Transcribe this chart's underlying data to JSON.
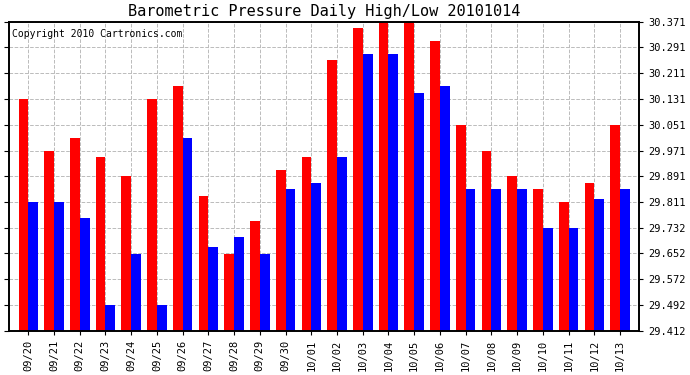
{
  "title": "Barometric Pressure Daily High/Low 20101014",
  "copyright": "Copyright 2010 Cartronics.com",
  "categories": [
    "09/20",
    "09/21",
    "09/22",
    "09/23",
    "09/24",
    "09/25",
    "09/26",
    "09/27",
    "09/28",
    "09/29",
    "09/30",
    "10/01",
    "10/02",
    "10/03",
    "10/04",
    "10/05",
    "10/06",
    "10/07",
    "10/08",
    "10/09",
    "10/10",
    "10/11",
    "10/12",
    "10/13"
  ],
  "highs": [
    30.131,
    29.971,
    30.011,
    29.951,
    29.891,
    30.131,
    30.171,
    29.831,
    29.651,
    29.751,
    29.911,
    29.951,
    30.251,
    30.351,
    30.371,
    30.371,
    30.311,
    30.051,
    29.971,
    29.891,
    29.851,
    29.811,
    29.871,
    30.051
  ],
  "lows": [
    29.811,
    29.811,
    29.761,
    29.491,
    29.651,
    29.491,
    30.011,
    29.671,
    29.701,
    29.651,
    29.851,
    29.871,
    29.951,
    30.271,
    30.271,
    30.151,
    30.171,
    29.851,
    29.851,
    29.851,
    29.731,
    29.731,
    29.821,
    29.851
  ],
  "ymin": 29.412,
  "ymax": 30.371,
  "yticks": [
    29.412,
    29.492,
    29.572,
    29.652,
    29.732,
    29.811,
    29.891,
    29.971,
    30.051,
    30.131,
    30.211,
    30.291,
    30.371
  ],
  "bar_color_high": "#ff0000",
  "bar_color_low": "#0000ff",
  "bg_color": "#ffffff",
  "grid_color": "#bbbbbb",
  "title_fontsize": 11,
  "copyright_fontsize": 7
}
